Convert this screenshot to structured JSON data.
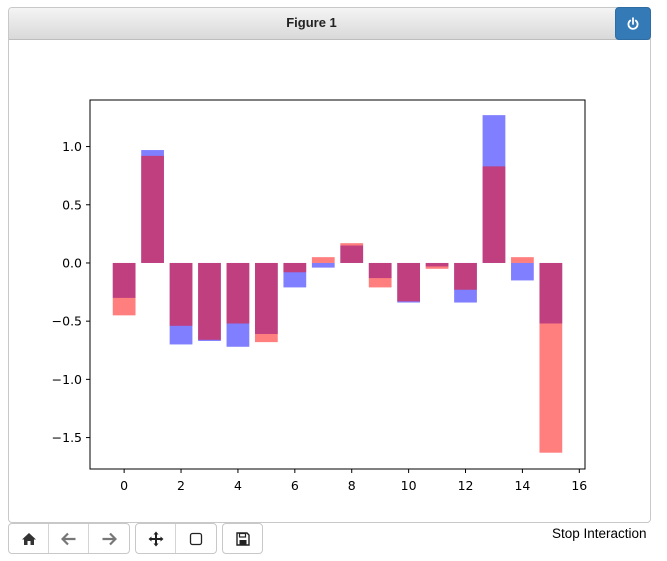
{
  "window": {
    "title": "Figure 1",
    "power_icon": "power-icon",
    "stop_label": "Stop Interaction"
  },
  "toolbar": {
    "groups": [
      [
        "home-icon",
        "back-arrow-icon",
        "forward-arrow-icon"
      ],
      [
        "move-pan-icon",
        "zoom-rect-icon"
      ],
      [
        "save-floppy-icon"
      ]
    ]
  },
  "chart_data": {
    "type": "bar",
    "title": "",
    "xlabel": "",
    "ylabel": "",
    "x": [
      0,
      1,
      2,
      3,
      4,
      5,
      6,
      7,
      8,
      9,
      10,
      11,
      12,
      13,
      14,
      15
    ],
    "xlim": [
      -1.2,
      16.2
    ],
    "ylim": [
      -1.77,
      1.4
    ],
    "xticks": [
      0,
      2,
      4,
      6,
      8,
      10,
      12,
      14,
      16
    ],
    "yticks": [
      1.0,
      0.5,
      0.0,
      -0.5,
      -1.0,
      -1.5
    ],
    "grid": false,
    "bar_width": 0.8,
    "series": [
      {
        "color": "#0000ff",
        "alpha": 0.5,
        "values": [
          -0.3,
          0.97,
          -0.7,
          -0.67,
          -0.72,
          -0.61,
          -0.21,
          -0.04,
          0.15,
          -0.13,
          -0.34,
          -0.03,
          -0.34,
          1.27,
          -0.15,
          -0.52
        ]
      },
      {
        "color": "#ff0000",
        "alpha": 0.5,
        "values": [
          -0.45,
          0.92,
          -0.54,
          -0.66,
          -0.52,
          -0.68,
          -0.08,
          0.05,
          0.17,
          -0.21,
          -0.33,
          -0.05,
          -0.23,
          0.83,
          0.05,
          -1.63
        ]
      }
    ]
  }
}
